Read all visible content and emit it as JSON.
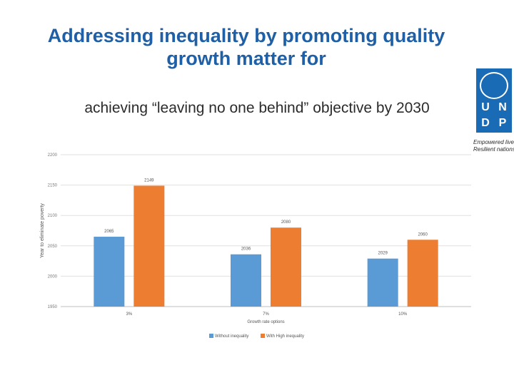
{
  "slide": {
    "title": "Addressing inequality by promoting quality growth matter for",
    "subtitle": "achieving “leaving no one behind” objective by 2030",
    "logo": {
      "icon": "un-emblem-icon",
      "letters": [
        "U",
        "N",
        "D",
        "P"
      ],
      "tagline_line1": "Empowered lives",
      "tagline_line2": "Resilient nations",
      "color": "#1a6bb5"
    }
  },
  "chart_data": {
    "type": "bar",
    "title": "",
    "xlabel": "Growth rate options",
    "ylabel": "Year to eliminate poverty",
    "categories": [
      "3%",
      "7%",
      "10%"
    ],
    "series": [
      {
        "name": "Without inequality",
        "values": [
          2065,
          2036,
          2029
        ],
        "color": "#5b9bd5"
      },
      {
        "name": "With High inequality",
        "values": [
          2149,
          2080,
          2060
        ],
        "color": "#ed7d31"
      }
    ],
    "ylim": [
      1950,
      2200
    ],
    "yticks": [
      1950,
      2000,
      2050,
      2100,
      2150,
      2200
    ],
    "grid": true,
    "legend": "bottom"
  }
}
